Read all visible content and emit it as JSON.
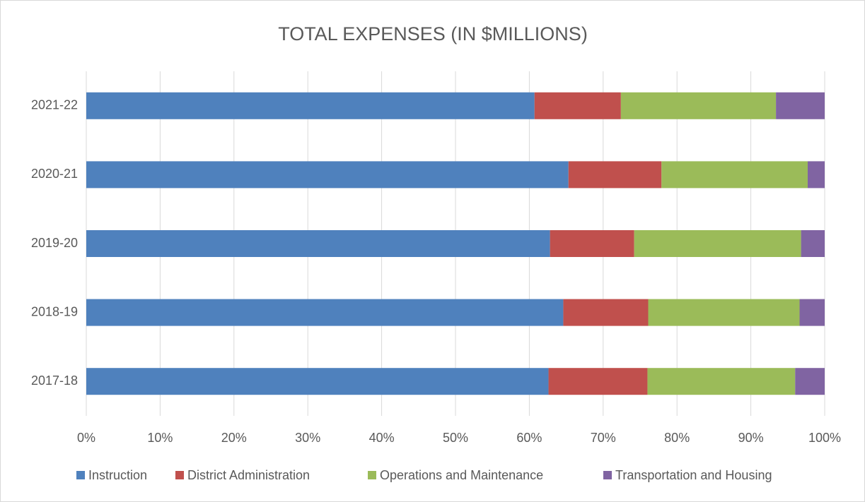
{
  "chart_data": {
    "type": "stacked_bar_horizontal",
    "title": "TOTAL EXPENSES (IN $MILLIONS)",
    "categories": [
      "2017-18",
      "2018-19",
      "2019-20",
      "2020-21",
      "2021-22"
    ],
    "series": [
      {
        "name": "Instruction",
        "color": "#4f81bd",
        "values": [
          62.6,
          64.6,
          62.8,
          65.3,
          60.7
        ]
      },
      {
        "name": "District Administration",
        "color": "#c0504d",
        "values": [
          13.4,
          11.5,
          11.4,
          12.6,
          11.7
        ]
      },
      {
        "name": "Operations and Maintenance",
        "color": "#9bbb59",
        "values": [
          20.0,
          20.5,
          22.6,
          19.8,
          21.0
        ]
      },
      {
        "name": "Transportation and Housing",
        "color": "#8064a2",
        "values": [
          4.0,
          3.4,
          3.2,
          2.3,
          6.6
        ]
      }
    ],
    "xlim": [
      0,
      100
    ],
    "xticks": [
      {
        "value": 0,
        "label": "0%"
      },
      {
        "value": 10,
        "label": "10%"
      },
      {
        "value": 20,
        "label": "20%"
      },
      {
        "value": 30,
        "label": "30%"
      },
      {
        "value": 40,
        "label": "40%"
      },
      {
        "value": 50,
        "label": "50%"
      },
      {
        "value": 60,
        "label": "60%"
      },
      {
        "value": 70,
        "label": "70%"
      },
      {
        "value": 80,
        "label": "80%"
      },
      {
        "value": 90,
        "label": "90%"
      },
      {
        "value": 100,
        "label": "100%"
      }
    ],
    "grid": true,
    "legend": "bottom"
  }
}
